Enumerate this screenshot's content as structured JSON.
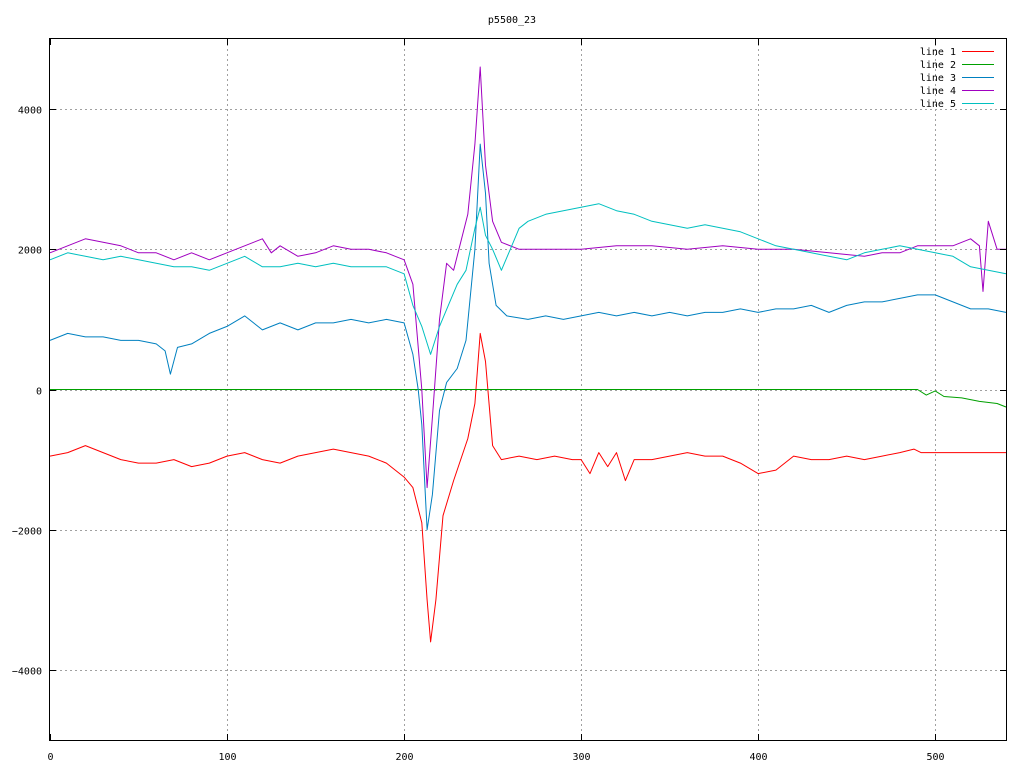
{
  "chart_data": {
    "type": "line",
    "title": "p5500_23",
    "xlabel": "",
    "ylabel": "",
    "xlim": [
      0,
      540
    ],
    "ylim": [
      -5000,
      5000
    ],
    "x_ticks": [
      0,
      100,
      200,
      300,
      400,
      500
    ],
    "y_ticks": [
      -4000,
      -2000,
      0,
      2000,
      4000
    ],
    "y_tick_labels": [
      "−4000",
      "−2000",
      "0",
      "2000",
      "4000"
    ],
    "grid": true,
    "legend_position": "top-right",
    "series": [
      {
        "name": "line 1",
        "color": "#ff0000",
        "points": [
          [
            0,
            -950
          ],
          [
            10,
            -900
          ],
          [
            20,
            -800
          ],
          [
            30,
            -900
          ],
          [
            40,
            -1000
          ],
          [
            50,
            -1050
          ],
          [
            60,
            -1050
          ],
          [
            70,
            -1000
          ],
          [
            80,
            -1100
          ],
          [
            90,
            -1050
          ],
          [
            100,
            -950
          ],
          [
            110,
            -900
          ],
          [
            120,
            -1000
          ],
          [
            130,
            -1050
          ],
          [
            140,
            -950
          ],
          [
            150,
            -900
          ],
          [
            160,
            -850
          ],
          [
            170,
            -900
          ],
          [
            180,
            -950
          ],
          [
            190,
            -1050
          ],
          [
            200,
            -1250
          ],
          [
            205,
            -1400
          ],
          [
            210,
            -1900
          ],
          [
            213,
            -3000
          ],
          [
            215,
            -3600
          ],
          [
            218,
            -3000
          ],
          [
            222,
            -1800
          ],
          [
            228,
            -1300
          ],
          [
            232,
            -1000
          ],
          [
            236,
            -700
          ],
          [
            240,
            -200
          ],
          [
            243,
            800
          ],
          [
            246,
            400
          ],
          [
            250,
            -800
          ],
          [
            255,
            -1000
          ],
          [
            265,
            -950
          ],
          [
            275,
            -1000
          ],
          [
            285,
            -950
          ],
          [
            295,
            -1000
          ],
          [
            300,
            -1000
          ],
          [
            305,
            -1200
          ],
          [
            310,
            -900
          ],
          [
            315,
            -1100
          ],
          [
            320,
            -900
          ],
          [
            325,
            -1300
          ],
          [
            330,
            -1000
          ],
          [
            340,
            -1000
          ],
          [
            350,
            -950
          ],
          [
            360,
            -900
          ],
          [
            370,
            -950
          ],
          [
            380,
            -950
          ],
          [
            390,
            -1050
          ],
          [
            400,
            -1200
          ],
          [
            410,
            -1150
          ],
          [
            420,
            -950
          ],
          [
            430,
            -1000
          ],
          [
            440,
            -1000
          ],
          [
            450,
            -950
          ],
          [
            460,
            -1000
          ],
          [
            470,
            -950
          ],
          [
            480,
            -900
          ],
          [
            488,
            -850
          ],
          [
            492,
            -900
          ],
          [
            540,
            -900
          ]
        ]
      },
      {
        "name": "line 2",
        "color": "#00a000",
        "points": [
          [
            0,
            0
          ],
          [
            490,
            0
          ],
          [
            495,
            -80
          ],
          [
            500,
            -20
          ],
          [
            505,
            -100
          ],
          [
            515,
            -120
          ],
          [
            525,
            -170
          ],
          [
            535,
            -200
          ],
          [
            540,
            -250
          ]
        ]
      },
      {
        "name": "line 3",
        "color": "#0080c0",
        "points": [
          [
            0,
            700
          ],
          [
            10,
            800
          ],
          [
            20,
            750
          ],
          [
            30,
            750
          ],
          [
            40,
            700
          ],
          [
            50,
            700
          ],
          [
            60,
            650
          ],
          [
            65,
            550
          ],
          [
            68,
            220
          ],
          [
            72,
            600
          ],
          [
            80,
            650
          ],
          [
            90,
            800
          ],
          [
            100,
            900
          ],
          [
            110,
            1050
          ],
          [
            120,
            850
          ],
          [
            130,
            950
          ],
          [
            140,
            850
          ],
          [
            150,
            950
          ],
          [
            160,
            950
          ],
          [
            170,
            1000
          ],
          [
            180,
            950
          ],
          [
            190,
            1000
          ],
          [
            200,
            950
          ],
          [
            205,
            500
          ],
          [
            208,
            0
          ],
          [
            210,
            -500
          ],
          [
            213,
            -2000
          ],
          [
            216,
            -1500
          ],
          [
            220,
            -300
          ],
          [
            224,
            100
          ],
          [
            230,
            300
          ],
          [
            235,
            700
          ],
          [
            240,
            2000
          ],
          [
            243,
            3500
          ],
          [
            246,
            2800
          ],
          [
            248,
            1800
          ],
          [
            252,
            1200
          ],
          [
            258,
            1050
          ],
          [
            270,
            1000
          ],
          [
            280,
            1050
          ],
          [
            290,
            1000
          ],
          [
            300,
            1050
          ],
          [
            310,
            1100
          ],
          [
            320,
            1050
          ],
          [
            330,
            1100
          ],
          [
            340,
            1050
          ],
          [
            350,
            1100
          ],
          [
            360,
            1050
          ],
          [
            370,
            1100
          ],
          [
            380,
            1100
          ],
          [
            390,
            1150
          ],
          [
            400,
            1100
          ],
          [
            410,
            1150
          ],
          [
            420,
            1150
          ],
          [
            430,
            1200
          ],
          [
            440,
            1100
          ],
          [
            450,
            1200
          ],
          [
            460,
            1250
          ],
          [
            470,
            1250
          ],
          [
            480,
            1300
          ],
          [
            490,
            1350
          ],
          [
            500,
            1350
          ],
          [
            510,
            1250
          ],
          [
            520,
            1150
          ],
          [
            530,
            1150
          ],
          [
            540,
            1100
          ]
        ]
      },
      {
        "name": "line 4",
        "color": "#a000c0",
        "points": [
          [
            0,
            1950
          ],
          [
            10,
            2050
          ],
          [
            20,
            2150
          ],
          [
            30,
            2100
          ],
          [
            40,
            2050
          ],
          [
            50,
            1950
          ],
          [
            60,
            1950
          ],
          [
            70,
            1850
          ],
          [
            80,
            1950
          ],
          [
            90,
            1850
          ],
          [
            100,
            1950
          ],
          [
            110,
            2050
          ],
          [
            120,
            2150
          ],
          [
            125,
            1950
          ],
          [
            130,
            2050
          ],
          [
            140,
            1900
          ],
          [
            150,
            1950
          ],
          [
            160,
            2050
          ],
          [
            170,
            2000
          ],
          [
            180,
            2000
          ],
          [
            190,
            1950
          ],
          [
            195,
            1900
          ],
          [
            200,
            1850
          ],
          [
            205,
            1500
          ],
          [
            210,
            0
          ],
          [
            213,
            -1400
          ],
          [
            216,
            -400
          ],
          [
            220,
            1000
          ],
          [
            224,
            1800
          ],
          [
            228,
            1700
          ],
          [
            232,
            2100
          ],
          [
            236,
            2500
          ],
          [
            240,
            3500
          ],
          [
            243,
            4600
          ],
          [
            246,
            3200
          ],
          [
            250,
            2400
          ],
          [
            255,
            2100
          ],
          [
            265,
            2000
          ],
          [
            280,
            2000
          ],
          [
            300,
            2000
          ],
          [
            320,
            2050
          ],
          [
            340,
            2050
          ],
          [
            360,
            2000
          ],
          [
            380,
            2050
          ],
          [
            400,
            2000
          ],
          [
            420,
            2000
          ],
          [
            440,
            1950
          ],
          [
            460,
            1900
          ],
          [
            470,
            1950
          ],
          [
            480,
            1950
          ],
          [
            490,
            2050
          ],
          [
            500,
            2050
          ],
          [
            510,
            2050
          ],
          [
            520,
            2150
          ],
          [
            525,
            2050
          ],
          [
            527,
            1400
          ],
          [
            530,
            2400
          ],
          [
            535,
            2000
          ],
          [
            540,
            2000
          ]
        ]
      },
      {
        "name": "line 5",
        "color": "#00c0c0",
        "points": [
          [
            0,
            1850
          ],
          [
            10,
            1950
          ],
          [
            20,
            1900
          ],
          [
            30,
            1850
          ],
          [
            40,
            1900
          ],
          [
            50,
            1850
          ],
          [
            60,
            1800
          ],
          [
            70,
            1750
          ],
          [
            80,
            1750
          ],
          [
            90,
            1700
          ],
          [
            100,
            1800
          ],
          [
            110,
            1900
          ],
          [
            120,
            1750
          ],
          [
            130,
            1750
          ],
          [
            140,
            1800
          ],
          [
            150,
            1750
          ],
          [
            160,
            1800
          ],
          [
            170,
            1750
          ],
          [
            180,
            1750
          ],
          [
            190,
            1750
          ],
          [
            200,
            1650
          ],
          [
            205,
            1200
          ],
          [
            210,
            900
          ],
          [
            215,
            500
          ],
          [
            220,
            900
          ],
          [
            225,
            1200
          ],
          [
            230,
            1500
          ],
          [
            235,
            1700
          ],
          [
            240,
            2300
          ],
          [
            243,
            2600
          ],
          [
            246,
            2200
          ],
          [
            250,
            2000
          ],
          [
            255,
            1700
          ],
          [
            260,
            2000
          ],
          [
            265,
            2300
          ],
          [
            270,
            2400
          ],
          [
            280,
            2500
          ],
          [
            290,
            2550
          ],
          [
            300,
            2600
          ],
          [
            310,
            2650
          ],
          [
            320,
            2550
          ],
          [
            330,
            2500
          ],
          [
            340,
            2400
          ],
          [
            350,
            2350
          ],
          [
            360,
            2300
          ],
          [
            370,
            2350
          ],
          [
            380,
            2300
          ],
          [
            390,
            2250
          ],
          [
            400,
            2150
          ],
          [
            410,
            2050
          ],
          [
            420,
            2000
          ],
          [
            430,
            1950
          ],
          [
            440,
            1900
          ],
          [
            450,
            1850
          ],
          [
            460,
            1950
          ],
          [
            470,
            2000
          ],
          [
            480,
            2050
          ],
          [
            490,
            2000
          ],
          [
            500,
            1950
          ],
          [
            510,
            1900
          ],
          [
            520,
            1750
          ],
          [
            530,
            1700
          ],
          [
            540,
            1650
          ]
        ]
      }
    ]
  }
}
